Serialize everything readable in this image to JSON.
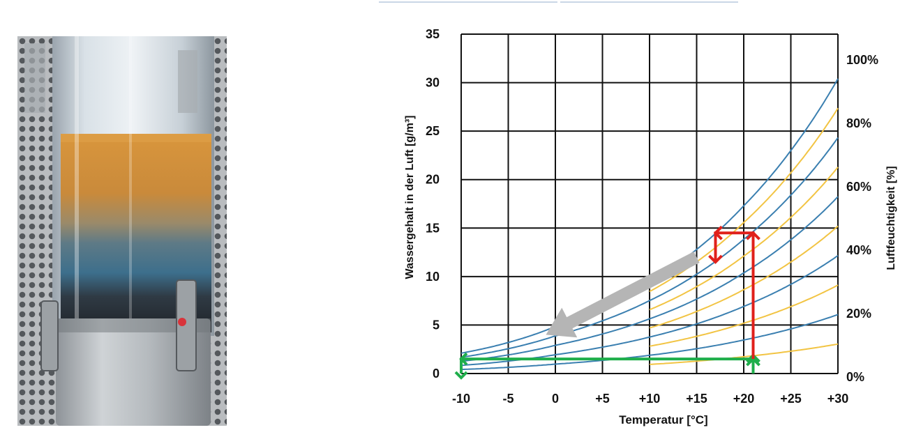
{
  "chart_data": {
    "type": "line",
    "xlabel": "Temperatur [°C]",
    "ylabel": "Wassergehalt in der Luft [g/m³]",
    "y2label": "Luftfeuchtigkeit [%]",
    "xlim": [
      -10,
      30
    ],
    "ylim": [
      0,
      35
    ],
    "x_tick_labels": [
      "-10",
      "-5",
      "0",
      "+5",
      "+10",
      "+15",
      "+20",
      "+25",
      "+30"
    ],
    "y_tick_labels": [
      "0",
      "5",
      "10",
      "15",
      "20",
      "25",
      "30",
      "35"
    ],
    "y2_tick_labels": [
      "0%",
      "20%",
      "40%",
      "60%",
      "80%",
      "100%"
    ],
    "grid": true,
    "x": [
      -10,
      -5,
      0,
      5,
      10,
      15,
      20,
      25,
      30
    ],
    "saturation_g_m3": [
      2.1,
      3.2,
      4.85,
      6.8,
      9.4,
      12.8,
      17.3,
      23.0,
      30.4
    ],
    "blue_series_rh_percent": [
      100,
      80,
      60,
      40,
      20
    ],
    "orange_series_rh_percent": [
      90,
      70,
      50,
      30,
      10
    ],
    "orange_series_x_start": 10,
    "annotations": {
      "red_arrow": [
        [
          21,
          1.5
        ],
        [
          21,
          14.5
        ],
        [
          17,
          14.5
        ],
        [
          17,
          11.5
        ]
      ],
      "green_arrow": [
        [
          21,
          0
        ],
        [
          21,
          1.5
        ],
        [
          -10,
          1.5
        ],
        [
          -10,
          0
        ]
      ],
      "grey_arrow": [
        [
          15,
          12
        ],
        [
          -1,
          4
        ]
      ]
    },
    "colors": {
      "blue": "#3a7fb0",
      "orange": "#f2c443",
      "red": "#e0201b",
      "green": "#1fae4b",
      "grey": "#b5b5b5"
    }
  },
  "photo": {
    "subject": "glass column filled with silica gel beads in layered colors (orange, grey, blue, dark) inside perforated metal housing"
  }
}
